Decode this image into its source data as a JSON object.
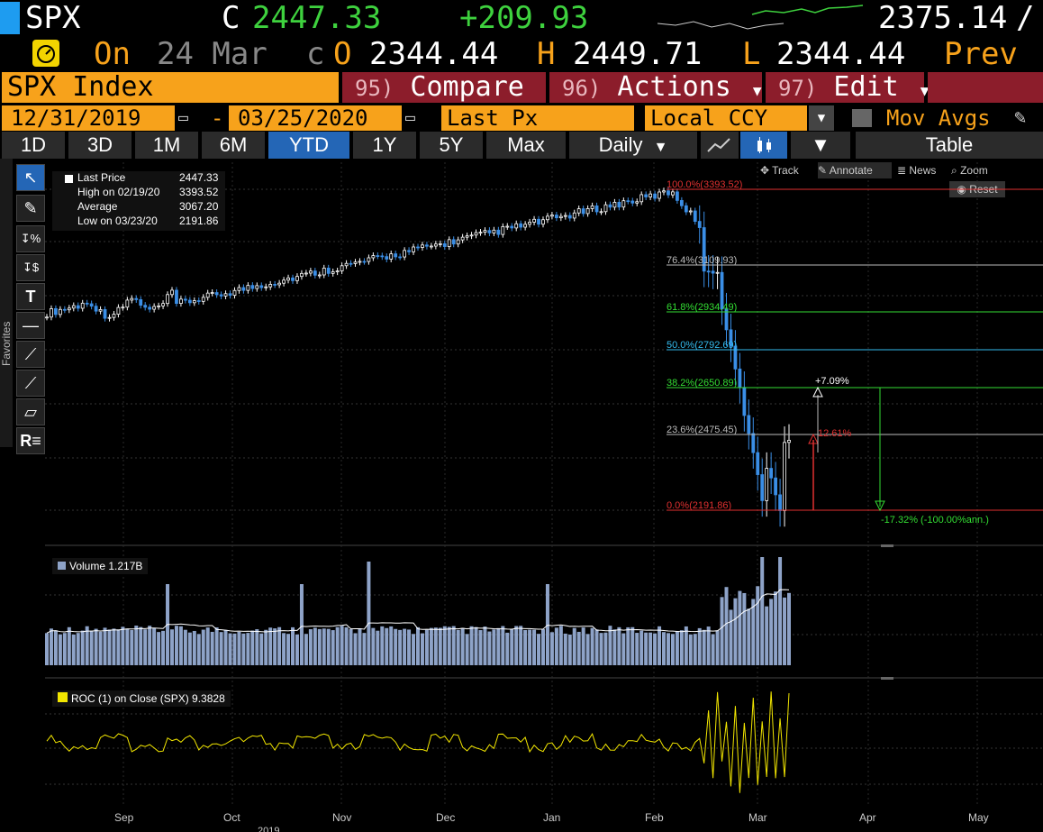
{
  "quote": {
    "ticker": "SPX",
    "close_label": "C",
    "close": "2447.33",
    "change": "+209.93",
    "after_value": "2375.14",
    "after_slash": "/",
    "on_label": "On",
    "date": "24 Mar",
    "c_label": "c",
    "open_label": "O",
    "open": "2344.44",
    "high_label": "H",
    "high": "2449.71",
    "low_label": "L",
    "low": "2344.44",
    "prev_label": "Prev"
  },
  "command_bar": {
    "security": "SPX Index",
    "compare_num": "95)",
    "compare": "Compare",
    "actions_num": "96)",
    "actions": "Actions",
    "edit_num": "97)",
    "edit": "Edit"
  },
  "date_bar": {
    "start": "12/31/2019",
    "dash": "-",
    "end": "03/25/2020",
    "field": "Last Px",
    "currency": "Local CCY",
    "mov_avgs": "Mov Avgs"
  },
  "range_bar": {
    "ranges": [
      "1D",
      "3D",
      "1M",
      "6M",
      "YTD",
      "1Y",
      "5Y",
      "Max"
    ],
    "active": "YTD",
    "period": "Daily",
    "table": "Table"
  },
  "chart_toolbar": {
    "track": "Track",
    "annotate": "Annotate",
    "news": "News",
    "zoom": "Zoom",
    "reset": "Reset"
  },
  "sidebar": {
    "favorites_label": "Favorites"
  },
  "legend": {
    "last_price_label": "Last Price",
    "last_price": "2447.33",
    "high_label": "High on 02/19/20",
    "high": "3393.52",
    "average_label": "Average",
    "average": "3067.20",
    "low_label": "Low on 03/23/20",
    "low": "2191.86"
  },
  "fib_levels": [
    {
      "label": "100.0%(3393.52)",
      "value": 3393.52,
      "color": "#e03030"
    },
    {
      "label": "76.4%(3109.93)",
      "value": 3109.93,
      "color": "#bbbbbb"
    },
    {
      "label": "61.8%(2934.49)",
      "value": 2934.49,
      "color": "#33dd33"
    },
    {
      "label": "50.0%(2792.69)",
      "value": 2792.69,
      "color": "#33bbee"
    },
    {
      "label": "38.2%(2650.89)",
      "value": 2650.89,
      "color": "#33dd33"
    },
    {
      "label": "23.6%(2475.45)",
      "value": 2475.45,
      "color": "#bbbbbb"
    },
    {
      "label": "0.0%(2191.86)",
      "value": 2191.86,
      "color": "#e03030"
    }
  ],
  "annotations": {
    "up_pct": "+7.09%",
    "mid_pct": "12.61%",
    "down_pct": "-17.32% (-100.00%ann.)"
  },
  "volume_panel": {
    "label": "Volume 1.217B"
  },
  "roc_panel": {
    "label": "ROC (1)  on Close (SPX) 9.3828"
  },
  "x_axis": {
    "months": [
      "Sep",
      "Oct",
      "Nov",
      "Dec",
      "Jan",
      "Feb",
      "Mar",
      "Apr",
      "May"
    ],
    "year": "2019"
  },
  "colors": {
    "orange": "#f7a21b",
    "green": "#3ed13e",
    "maroon": "#8c1d2b",
    "blue_accent": "#2466b6",
    "candle_up": "#ffffff",
    "candle_down": "#3a8ee6"
  },
  "chart_data": {
    "type": "line",
    "title": "",
    "series": [
      {
        "name": "Last Price",
        "x": [
          "Sep",
          "Oct",
          "Nov",
          "Dec",
          "Jan",
          "Feb",
          "Feb",
          "Mar",
          "Mar"
        ],
        "values": [
          2940,
          2985,
          3080,
          3150,
          3280,
          3380,
          3110,
          2330,
          2447.33
        ]
      }
    ],
    "high": 3393.52,
    "low": 2191.86,
    "last": 2447.33
  }
}
